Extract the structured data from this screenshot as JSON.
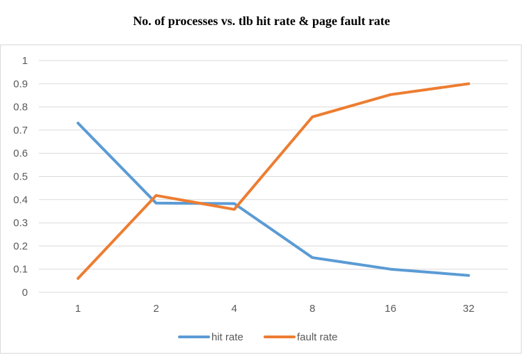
{
  "chart_data": {
    "type": "line",
    "title": "No. of processes vs. tlb hit rate & page fault rate",
    "xlabel": "",
    "ylabel": "",
    "categories": [
      "1",
      "2",
      "4",
      "8",
      "16",
      "32"
    ],
    "ylim": [
      0,
      1
    ],
    "yticks": [
      "0",
      "0.1",
      "0.2",
      "0.3",
      "0.4",
      "0.5",
      "0.6",
      "0.7",
      "0.8",
      "0.9",
      "1"
    ],
    "grid": true,
    "legend": "bottom",
    "series": [
      {
        "name": "hit rate",
        "color": "#5B9BD5",
        "values": [
          0.73,
          0.385,
          0.383,
          0.15,
          0.1,
          0.073
        ]
      },
      {
        "name": "fault rate",
        "color": "#ED7D31",
        "values": [
          0.06,
          0.418,
          0.358,
          0.757,
          0.853,
          0.9
        ]
      }
    ]
  }
}
